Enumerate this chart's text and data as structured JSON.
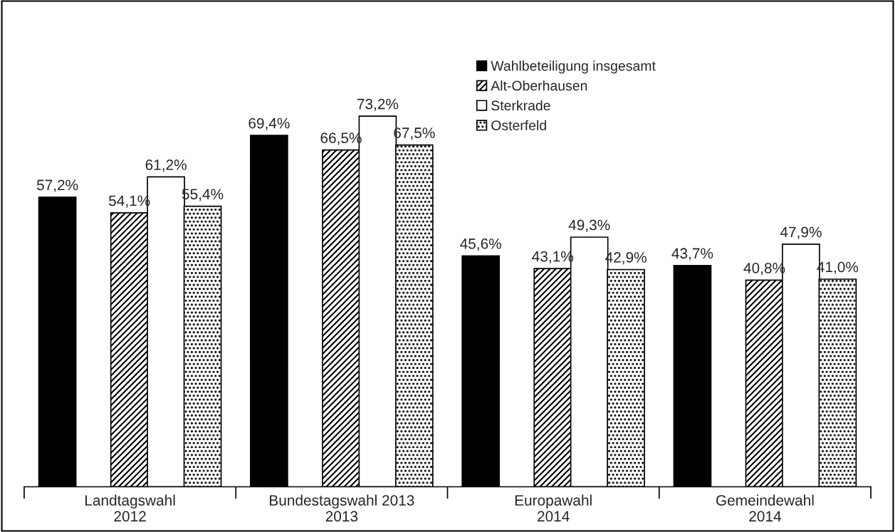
{
  "chart_data": {
    "type": "bar",
    "categories": [
      "Landtagswahl\n2012",
      "Bundestagswahl 2013\n2013",
      "Europawahl\n2014",
      "Gemeindewahl\n2014"
    ],
    "series": [
      {
        "name": "Wahlbeteiligung insgesamt",
        "color": "#000000",
        "values": [
          57.2,
          69.4,
          45.6,
          43.7
        ],
        "value_labels": [
          "57,2%",
          "69,4%",
          "45,6%",
          "43,7%"
        ]
      },
      {
        "name": "Alt-Oberhausen",
        "color": "#000000",
        "values": [
          54.1,
          66.5,
          43.1,
          40.8
        ],
        "value_labels": [
          "54,1%",
          "66,5%",
          "43,1%",
          "40,8%"
        ]
      },
      {
        "name": "Sterkrade",
        "color": "#ffffff",
        "values": [
          61.2,
          73.2,
          49.3,
          47.9
        ],
        "value_labels": [
          "61,2%",
          "73,2%",
          "49,3%",
          "47,9%"
        ]
      },
      {
        "name": "Osterfeld",
        "color": "#000000",
        "values": [
          55.4,
          67.5,
          42.9,
          41.0
        ],
        "value_labels": [
          "55,4%",
          "67,5%",
          "42,9%",
          "41,0%"
        ]
      }
    ],
    "grid": false,
    "legend": "top right"
  }
}
